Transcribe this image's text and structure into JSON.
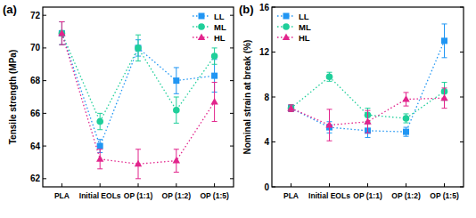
{
  "chart_data": [
    {
      "type": "line",
      "title": "(a)",
      "y_label": "Tensile strength (MPa)",
      "categories": [
        "PLA",
        "Initial EOLs",
        "OP (1:1)",
        "OP (1:2)",
        "OP (1:5)"
      ],
      "series": [
        {
          "name": "LL",
          "color": "#2196f3",
          "marker": "square",
          "line_style": "dotted",
          "values": [
            70.9,
            64.0,
            70.0,
            68.0,
            68.3
          ],
          "errors": [
            0.7,
            0.4,
            0.5,
            0.8,
            1.0
          ]
        },
        {
          "name": "ML",
          "color": "#1fcf9a",
          "marker": "circle",
          "line_style": "dotted",
          "values": [
            70.9,
            65.5,
            70.0,
            66.2,
            69.5
          ],
          "errors": [
            0.7,
            0.5,
            0.8,
            0.8,
            0.5
          ]
        },
        {
          "name": "HL",
          "color": "#e2248c",
          "marker": "triangle",
          "line_style": "dotted",
          "values": [
            70.9,
            63.2,
            62.9,
            63.1,
            66.7
          ],
          "errors": [
            0.7,
            0.6,
            0.9,
            0.7,
            1.2
          ]
        }
      ],
      "ylim": [
        61.5,
        72.5
      ],
      "yticks": [
        62,
        64,
        66,
        68,
        70,
        72
      ],
      "grid": false,
      "legend": "upper right"
    },
    {
      "type": "line",
      "title": "(b)",
      "y_label": "Nominal strain at break (%)",
      "categories": [
        "PLA",
        "Initial EOLs",
        "OP (1:1)",
        "OP (1:2)",
        "OP (1:5)"
      ],
      "series": [
        {
          "name": "LL",
          "color": "#2196f3",
          "marker": "square",
          "line_style": "dotted",
          "values": [
            7.0,
            5.3,
            5.0,
            4.9,
            13.0
          ],
          "errors": [
            0.3,
            0.5,
            0.6,
            0.4,
            1.5
          ]
        },
        {
          "name": "ML",
          "color": "#1fcf9a",
          "marker": "circle",
          "line_style": "dotted",
          "values": [
            7.0,
            9.8,
            6.4,
            6.1,
            8.5
          ],
          "errors": [
            0.3,
            0.4,
            0.6,
            0.4,
            0.8
          ]
        },
        {
          "name": "HL",
          "color": "#e2248c",
          "marker": "triangle",
          "line_style": "dotted",
          "values": [
            7.0,
            5.5,
            5.8,
            7.8,
            7.9
          ],
          "errors": [
            0.3,
            1.4,
            1.0,
            0.6,
            0.9
          ]
        }
      ],
      "ylim": [
        0,
        16
      ],
      "yticks": [
        0,
        4,
        8,
        12,
        16
      ],
      "grid": false,
      "legend": "upper left"
    }
  ]
}
